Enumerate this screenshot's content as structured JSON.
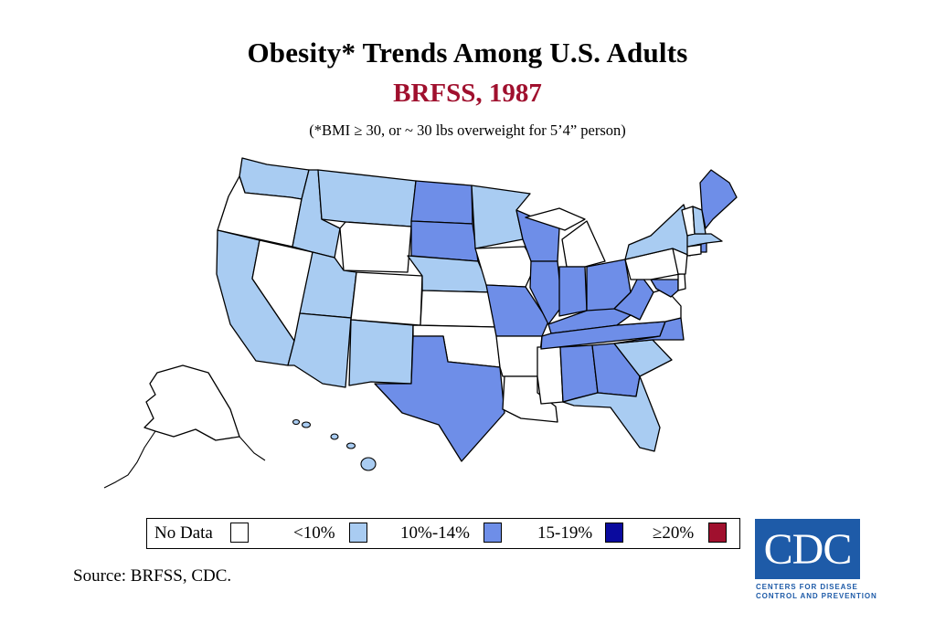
{
  "header": {
    "title": "Obesity* Trends Among U.S. Adults",
    "subtitle": "BRFSS, 1987",
    "note": "(*BMI ≥ 30, or ~ 30 lbs overweight for 5’4” person)"
  },
  "colors": {
    "no_data": "#ffffff",
    "lt10": "#A9CCF2",
    "10_14": "#6E8EE8",
    "15_19": "#0A0A9E",
    "ge20": "#A0102E",
    "subtitle": "#A0102E",
    "cdc_blue": "#1E5BA8"
  },
  "legend": {
    "items": [
      {
        "label": "No Data",
        "color": "#ffffff"
      },
      {
        "label": "<10%",
        "color": "#A9CCF2"
      },
      {
        "label": "10%-14%",
        "color": "#6E8EE8"
      },
      {
        "label": "15-19%",
        "color": "#0A0A9E"
      },
      {
        "label": "≥20%",
        "color": "#A0102E"
      }
    ]
  },
  "map": {
    "states": {
      "WA": "lt10",
      "OR": "no_data",
      "CA": "lt10",
      "NV": "no_data",
      "ID": "lt10",
      "MT": "lt10",
      "WY": "no_data",
      "UT": "lt10",
      "AZ": "lt10",
      "CO": "no_data",
      "NM": "lt10",
      "ND": "10_14",
      "SD": "10_14",
      "NE": "lt10",
      "KS": "no_data",
      "OK": "no_data",
      "TX": "10_14",
      "MN": "lt10",
      "IA": "no_data",
      "MO": "10_14",
      "AR": "no_data",
      "LA": "no_data",
      "WI": "10_14",
      "IL": "10_14",
      "MS": "no_data",
      "MI": "no_data",
      "IN": "10_14",
      "KY": "10_14",
      "TN": "10_14",
      "AL": "10_14",
      "OH": "10_14",
      "WV": "10_14",
      "GA": "10_14",
      "FL": "lt10",
      "SC": "lt10",
      "NC": "10_14",
      "VA": "no_data",
      "PA": "no_data",
      "NY": "lt10",
      "ME": "10_14",
      "VT": "no_data",
      "NH": "lt10",
      "MA": "lt10",
      "CT": "no_data",
      "RI": "10_14",
      "NJ": "no_data",
      "DE": "no_data",
      "MD": "10_14",
      "AK": "no_data",
      "HI": "lt10"
    }
  },
  "source": "Source: BRFSS, CDC.",
  "logo": {
    "text": "CDC",
    "line1": "CENTERS FOR DISEASE",
    "line2": "CONTROL AND PREVENTION"
  }
}
